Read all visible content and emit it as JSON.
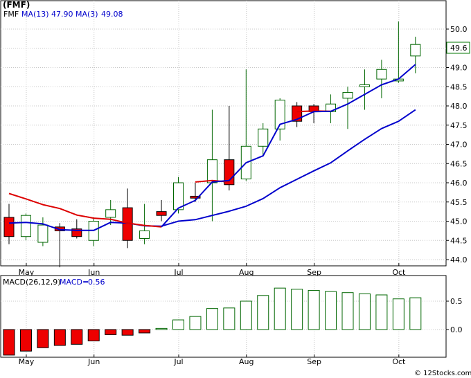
{
  "chart_data": [
    {
      "type": "candlestick",
      "legend": {
        "symbol": "(FMF)",
        "items": [
          {
            "label": "FMF",
            "color": "#000000"
          },
          {
            "label": "MA(13)",
            "value": "47.90",
            "color": "#0000cc"
          },
          {
            "label": "MA(3)",
            "value": "49.08",
            "color": "#0000cc"
          }
        ]
      },
      "last_price_label": "49.6",
      "ylim": [
        43.6,
        50.6
      ],
      "y_ticks": [
        "44.0",
        "44.5",
        "45.0",
        "45.5",
        "46.0",
        "46.5",
        "47.0",
        "47.5",
        "48.0",
        "48.5",
        "49.0",
        "49.5",
        "50.0"
      ],
      "x_labels": [
        {
          "label": "May",
          "index": 1
        },
        {
          "label": "Jun",
          "index": 5
        },
        {
          "label": "Jul",
          "index": 10
        },
        {
          "label": "Aug",
          "index": 14
        },
        {
          "label": "Sep",
          "index": 18
        },
        {
          "label": "Oct",
          "index": 23
        }
      ],
      "candles": [
        {
          "o": 45.1,
          "h": 45.45,
          "l": 44.4,
          "c": 44.6,
          "down": true
        },
        {
          "o": 44.6,
          "h": 45.2,
          "l": 44.5,
          "c": 45.15,
          "down": false
        },
        {
          "o": 44.45,
          "h": 45.1,
          "l": 44.35,
          "c": 44.9,
          "down": false
        },
        {
          "o": 44.85,
          "h": 44.95,
          "l": 43.8,
          "c": 44.75,
          "down": true
        },
        {
          "o": 44.8,
          "h": 45.05,
          "l": 44.55,
          "c": 44.6,
          "down": true
        },
        {
          "o": 44.5,
          "h": 45.1,
          "l": 44.35,
          "c": 45.0,
          "down": false
        },
        {
          "o": 45.1,
          "h": 45.55,
          "l": 44.9,
          "c": 45.3,
          "down": false
        },
        {
          "o": 45.35,
          "h": 45.85,
          "l": 44.3,
          "c": 44.5,
          "down": true
        },
        {
          "o": 44.55,
          "h": 45.45,
          "l": 44.4,
          "c": 44.75,
          "down": false
        },
        {
          "o": 45.25,
          "h": 45.55,
          "l": 45.0,
          "c": 45.15,
          "down": true
        },
        {
          "o": 45.3,
          "h": 46.15,
          "l": 45.2,
          "c": 46.0,
          "down": false
        },
        {
          "o": 45.65,
          "h": 46.0,
          "l": 45.5,
          "c": 45.6,
          "down": true
        },
        {
          "o": 46.0,
          "h": 47.9,
          "l": 45.0,
          "c": 46.6,
          "down": false
        },
        {
          "o": 46.6,
          "h": 48.0,
          "l": 45.8,
          "c": 45.95,
          "down": true
        },
        {
          "o": 46.1,
          "h": 48.95,
          "l": 46.05,
          "c": 46.95,
          "down": false
        },
        {
          "o": 46.95,
          "h": 47.55,
          "l": 46.7,
          "c": 47.4,
          "down": false
        },
        {
          "o": 47.4,
          "h": 48.2,
          "l": 47.1,
          "c": 48.15,
          "down": false
        },
        {
          "o": 48.0,
          "h": 48.1,
          "l": 47.45,
          "c": 47.6,
          "down": true
        },
        {
          "o": 48.0,
          "h": 48.05,
          "l": 47.55,
          "c": 47.85,
          "down": true
        },
        {
          "o": 47.85,
          "h": 48.3,
          "l": 47.55,
          "c": 48.05,
          "down": false
        },
        {
          "o": 48.2,
          "h": 48.5,
          "l": 47.4,
          "c": 48.35,
          "down": false
        },
        {
          "o": 48.5,
          "h": 48.95,
          "l": 47.9,
          "c": 48.55,
          "down": false
        },
        {
          "o": 48.7,
          "h": 49.2,
          "l": 48.2,
          "c": 48.95,
          "down": false
        },
        {
          "o": 48.65,
          "h": 50.2,
          "l": 48.6,
          "c": 48.7,
          "down": false
        },
        {
          "o": 49.3,
          "h": 49.8,
          "l": 48.85,
          "c": 49.6,
          "down": false
        }
      ],
      "series": [
        {
          "name": "MA(13)",
          "color": "#0000cc",
          "line_width": 2,
          "start_index": 0,
          "values": [
            44.95,
            44.97,
            44.93,
            44.78,
            44.76,
            44.76,
            44.97,
            44.95,
            44.88,
            44.87,
            45.0,
            45.04,
            45.15,
            45.26,
            45.39,
            45.59,
            45.87,
            46.09,
            46.31,
            46.52,
            46.83,
            47.13,
            47.41,
            47.6,
            47.9
          ]
        },
        {
          "name": "MA(3)",
          "color": "#dd0000",
          "line_width": 2,
          "start_index": 0,
          "end_index": 9,
          "values": [
            45.72,
            45.58,
            45.43,
            45.33,
            45.16,
            45.08,
            45.05,
            44.95,
            44.89,
            44.85
          ]
        },
        {
          "name": "MA(3)",
          "color": "#dd0000",
          "line_width": 2,
          "start_index": 11,
          "end_index": 13,
          "values": [
            46.02,
            46.06,
            46.02
          ]
        },
        {
          "name": "MA(3)",
          "color": "#dd0000",
          "line_width": 2,
          "start_index": 17,
          "end_index": 19,
          "values": [
            47.85,
            47.87,
            47.86
          ]
        },
        {
          "name": "MA(3)",
          "color": "#0000cc",
          "line_width": 2,
          "start_index": 9,
          "end_index": 24,
          "values": [
            44.85,
            45.34,
            45.54,
            46.02,
            46.06,
            46.52,
            46.7,
            47.52,
            47.65,
            47.85,
            47.86,
            48.05,
            48.3,
            48.55,
            48.7,
            49.08
          ]
        }
      ]
    },
    {
      "type": "bar",
      "legend": {
        "items": [
          {
            "label": "MACD(26,12,9)",
            "color": "#000000"
          },
          {
            "label": "MACD",
            "value": "0.56",
            "color": "#0000cc"
          }
        ]
      },
      "ylim": [
        -0.46,
        0.93
      ],
      "y_ticks": [
        "0.5",
        "0.0"
      ],
      "x_labels": [
        {
          "label": "May",
          "index": 1
        },
        {
          "label": "Jun",
          "index": 5
        },
        {
          "label": "Jul",
          "index": 10
        },
        {
          "label": "Aug",
          "index": 14
        },
        {
          "label": "Sep",
          "index": 18
        },
        {
          "label": "Oct",
          "index": 23
        }
      ],
      "values": [
        -0.45,
        -0.38,
        -0.32,
        -0.28,
        -0.26,
        -0.2,
        -0.09,
        -0.1,
        -0.06,
        0.02,
        0.17,
        0.23,
        0.37,
        0.38,
        0.5,
        0.6,
        0.73,
        0.71,
        0.69,
        0.67,
        0.65,
        0.63,
        0.61,
        0.54,
        0.56
      ]
    }
  ],
  "footer": {
    "credit": "© 12Stocks.com"
  }
}
